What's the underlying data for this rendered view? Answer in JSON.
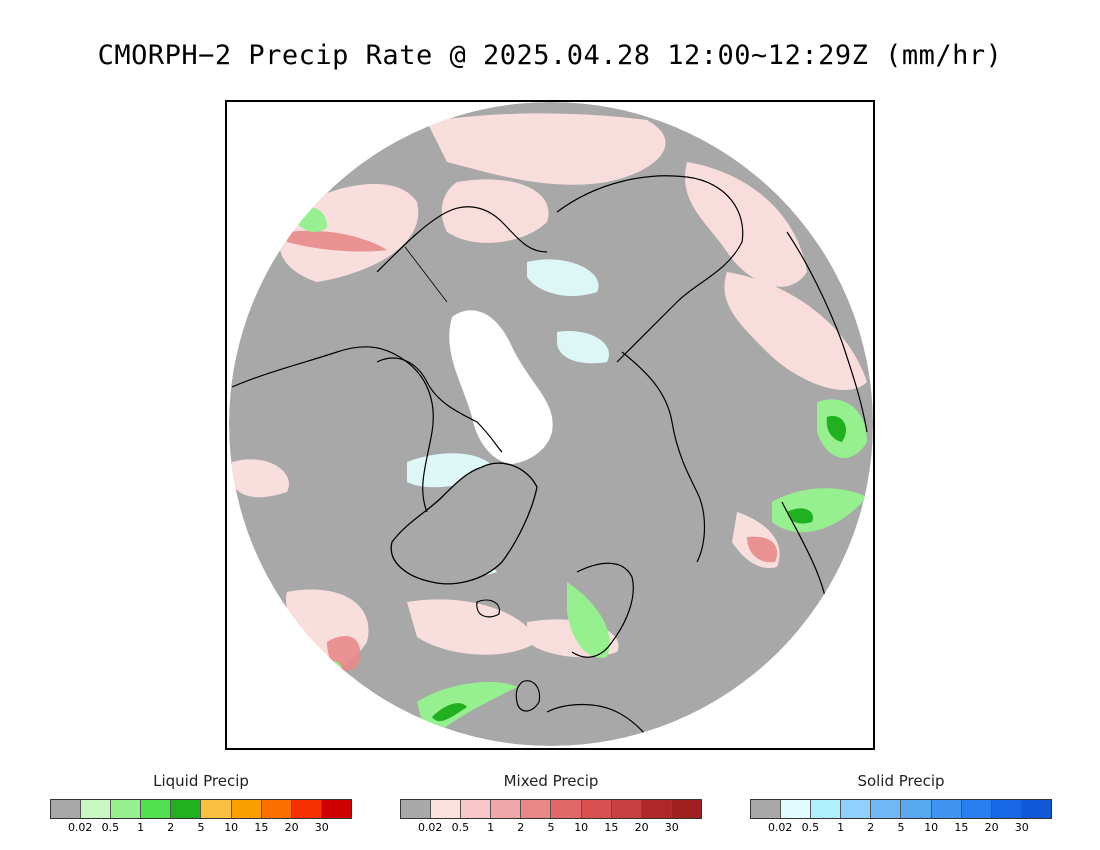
{
  "title": "CMORPH−2 Precip Rate @ 2025.04.28 12:00~12:29Z (mm/hr)",
  "map": {
    "projection": "north-polar-stereographic",
    "background_color": "#a8a8a8",
    "ice_color": "#ffffff",
    "coastline_color": "#000000"
  },
  "legends": [
    {
      "title": "Liquid Precip",
      "colors": [
        "#a8a8a8",
        "#c8f8c0",
        "#96f090",
        "#50e050",
        "#20b020",
        "#fcc040",
        "#fca000",
        "#fc7000",
        "#f83000",
        "#d00000"
      ],
      "ticks": [
        "0.02",
        "0.5",
        "1",
        "2",
        "5",
        "10",
        "15",
        "20",
        "30"
      ]
    },
    {
      "title": "Mixed Precip",
      "colors": [
        "#a8a8a8",
        "#fde0e0",
        "#f8c8c8",
        "#f0a8a8",
        "#e88888",
        "#e06868",
        "#d85050",
        "#c84040",
        "#b02828",
        "#a02020"
      ],
      "ticks": [
        "0.02",
        "0.5",
        "1",
        "2",
        "5",
        "10",
        "15",
        "20",
        "30"
      ]
    },
    {
      "title": "Solid Precip",
      "colors": [
        "#a8a8a8",
        "#e0fcfc",
        "#b0f0fc",
        "#90d0fc",
        "#70b8f8",
        "#58a8f0",
        "#4094f0",
        "#2880f0",
        "#1868e8",
        "#1058d8"
      ],
      "ticks": [
        "0.02",
        "0.5",
        "1",
        "2",
        "5",
        "10",
        "15",
        "20",
        "30"
      ]
    }
  ]
}
